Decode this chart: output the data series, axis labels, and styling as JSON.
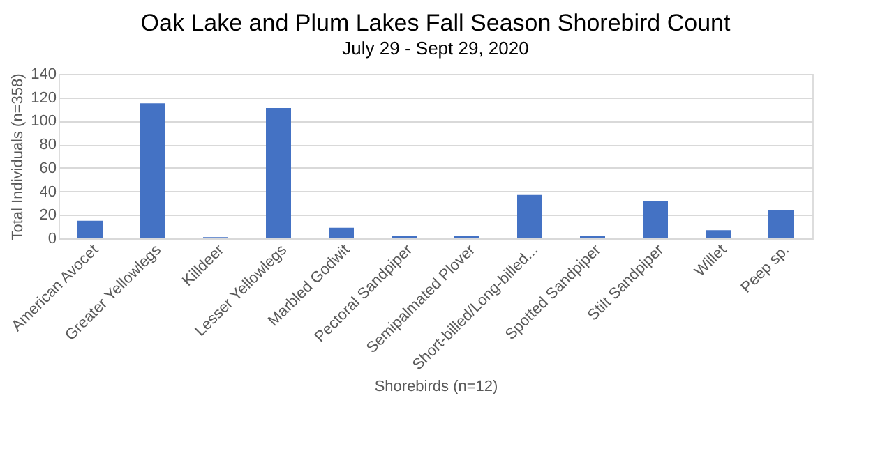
{
  "chart_data": {
    "type": "bar",
    "title": "Oak Lake and Plum Lakes Fall Season Shorebird Count",
    "subtitle": "July 29 - Sept 29, 2020",
    "xlabel": "Shorebirds (n=12)",
    "ylabel": "Total Individuals (n=358)",
    "categories": [
      "American Avocet",
      "Greater Yellowlegs",
      "Killdeer",
      "Lesser Yellowlegs",
      "Marbled Godwit",
      "Pectoral Sandpiper",
      "Semipalmated Plover",
      "Short-billed/Long-billed...",
      "Spotted Sandpiper",
      "Stilt Sandpiper",
      "Willet",
      "Peep sp."
    ],
    "values": [
      15,
      115,
      1,
      111,
      9,
      2,
      2,
      37,
      2,
      32,
      7,
      24
    ],
    "color": "#4472c4",
    "ylim": [
      0,
      140
    ],
    "yticks": [
      0,
      20,
      40,
      60,
      80,
      100,
      120,
      140
    ],
    "grid": "y"
  }
}
